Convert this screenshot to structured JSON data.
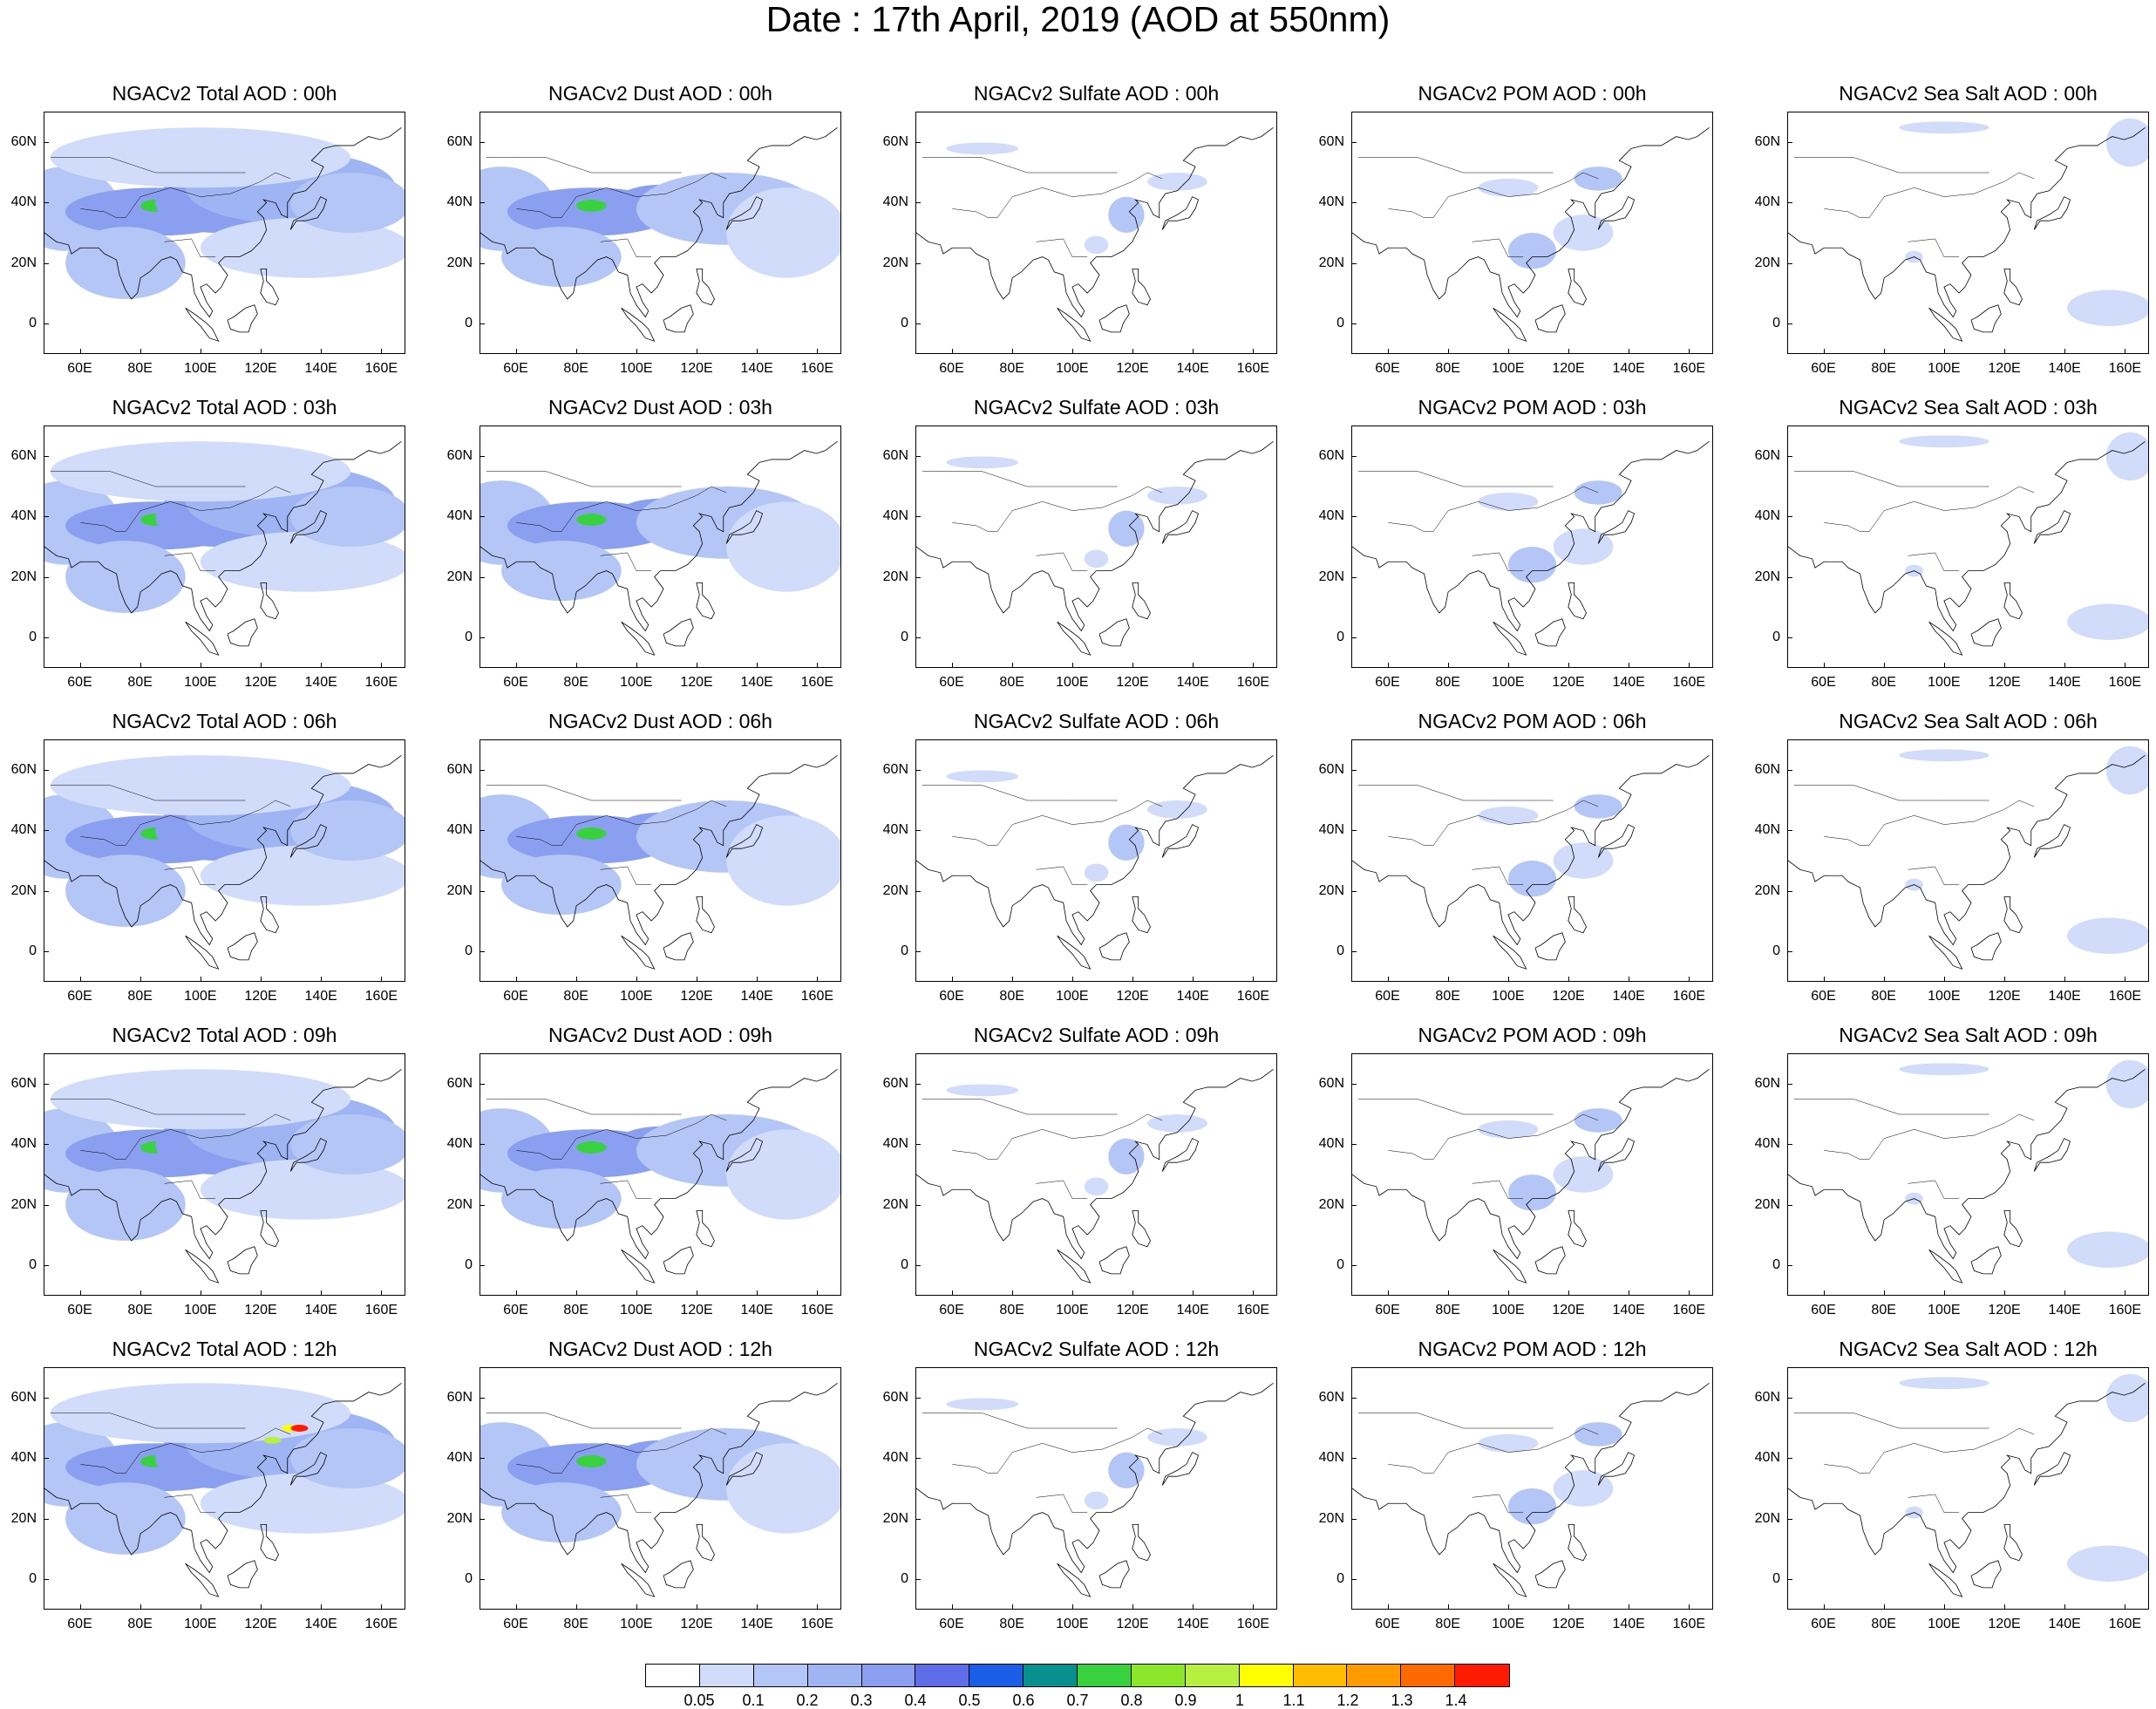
{
  "title": "Date : 17th April, 2019 (AOD at 550nm)",
  "species": [
    {
      "id": "total",
      "titles": [
        "NGACv2 Total AOD : 00h",
        "NGACv2 Total AOD : 03h",
        "NGACv2 Total AOD : 06h",
        "NGACv2 Total AOD : 09h",
        "NGACv2 Total AOD  : 12h"
      ]
    },
    {
      "id": "dust",
      "titles": [
        "NGACv2 Dust AOD : 00h",
        "NGACv2 Dust AOD : 03h",
        "NGACv2 Dust AOD : 06h",
        "NGACv2 Dust AOD : 09h",
        "NGACv2 Dust AOD : 12h"
      ]
    },
    {
      "id": "sulfate",
      "titles": [
        "NGACv2 Sulfate AOD : 00h",
        "NGACv2 Sulfate AOD : 03h",
        "NGACv2 Sulfate AOD : 06h",
        "NGACv2 Sulfate AOD : 09h",
        "NGACv2 Sulfate AOD : 12h"
      ]
    },
    {
      "id": "pom",
      "titles": [
        "NGACv2 POM AOD : 00h",
        "NGACv2 POM AOD : 03h",
        "NGACv2 POM AOD : 06h",
        "NGACv2 POM AOD : 09h",
        "NGACv2 POM  AOD : 12h"
      ]
    },
    {
      "id": "seasalt",
      "titles": [
        "NGACv2 Sea Salt AOD : 00h",
        "NGACv2 Sea Salt AOD : 03h",
        "NGACv2 Sea Salt AOD : 06h",
        "NGACv2 Sea Salt  AOD : 09h",
        "NGACv2 Sea Salt  AOD : 12h"
      ]
    }
  ],
  "hours": [
    "00h",
    "03h",
    "06h",
    "09h",
    "12h"
  ],
  "axes": {
    "lon_ticks": [
      "60E",
      "80E",
      "100E",
      "120E",
      "140E",
      "160E"
    ],
    "lon_values": [
      60,
      80,
      100,
      120,
      140,
      160
    ],
    "lat_ticks": [
      "60N",
      "40N",
      "20N",
      "0"
    ],
    "lat_values": [
      60,
      40,
      20,
      0
    ],
    "lon_range": [
      48,
      168
    ],
    "lat_range": [
      -10,
      70
    ]
  },
  "colorbar": {
    "colors": [
      "#ffffff",
      "#d0dcfa",
      "#b4c6f6",
      "#9fb4f2",
      "#8a9ff0",
      "#5f6ee8",
      "#1a5ee8",
      "#07908e",
      "#38d23e",
      "#8ce62a",
      "#b8f040",
      "#ffff00",
      "#ffbc00",
      "#ff9a00",
      "#ff6a00",
      "#ff1a00"
    ],
    "labels": [
      "0.05",
      "0.1",
      "0.2",
      "0.3",
      "0.4",
      "0.5",
      "0.6",
      "0.7",
      "0.8",
      "0.9",
      "1",
      "1.1",
      "1.2",
      "1.3",
      "1.4"
    ]
  },
  "chart_data": {
    "type": "heatmap",
    "title": "Date : 17th April, 2019 (AOD at 550nm)",
    "variable": "AOD at 550nm",
    "xrange": [
      48,
      168
    ],
    "yrange": [
      -10,
      70
    ],
    "features": {
      "total": [
        {
          "lon": 55,
          "lat": 38,
          "rx": 18,
          "ry": 14,
          "level": 2
        },
        {
          "lon": 85,
          "lat": 37,
          "rx": 30,
          "ry": 8,
          "level": 4
        },
        {
          "lon": 85,
          "lat": 39,
          "rx": 5,
          "ry": 2,
          "level": 8
        },
        {
          "lon": 105,
          "lat": 40,
          "rx": 20,
          "ry": 10,
          "level": 4
        },
        {
          "lon": 130,
          "lat": 45,
          "rx": 35,
          "ry": 12,
          "level": 3
        },
        {
          "lon": 75,
          "lat": 20,
          "rx": 20,
          "ry": 12,
          "level": 2
        },
        {
          "lon": 135,
          "lat": 25,
          "rx": 35,
          "ry": 10,
          "level": 1
        },
        {
          "lon": 100,
          "lat": 55,
          "rx": 50,
          "ry": 10,
          "level": 1
        },
        {
          "lon": 150,
          "lat": 40,
          "rx": 20,
          "ry": 10,
          "level": 2
        }
      ],
      "dust": [
        {
          "lon": 55,
          "lat": 38,
          "rx": 18,
          "ry": 14,
          "level": 2
        },
        {
          "lon": 85,
          "lat": 37,
          "rx": 28,
          "ry": 8,
          "level": 4
        },
        {
          "lon": 85,
          "lat": 39,
          "rx": 5,
          "ry": 2,
          "level": 8
        },
        {
          "lon": 108,
          "lat": 40,
          "rx": 15,
          "ry": 6,
          "level": 4
        },
        {
          "lon": 130,
          "lat": 38,
          "rx": 30,
          "ry": 12,
          "level": 2
        },
        {
          "lon": 75,
          "lat": 22,
          "rx": 20,
          "ry": 10,
          "level": 2
        },
        {
          "lon": 150,
          "lat": 30,
          "rx": 20,
          "ry": 15,
          "level": 1
        }
      ],
      "sulfate": [
        {
          "lon": 70,
          "lat": 58,
          "rx": 12,
          "ry": 2,
          "level": 1
        },
        {
          "lon": 118,
          "lat": 36,
          "rx": 6,
          "ry": 6,
          "level": 2
        },
        {
          "lon": 135,
          "lat": 47,
          "rx": 10,
          "ry": 3,
          "level": 1
        },
        {
          "lon": 108,
          "lat": 26,
          "rx": 4,
          "ry": 3,
          "level": 1
        }
      ],
      "pom": [
        {
          "lon": 108,
          "lat": 24,
          "rx": 8,
          "ry": 6,
          "level": 2
        },
        {
          "lon": 130,
          "lat": 48,
          "rx": 8,
          "ry": 4,
          "level": 2
        },
        {
          "lon": 125,
          "lat": 30,
          "rx": 10,
          "ry": 6,
          "level": 1
        },
        {
          "lon": 100,
          "lat": 45,
          "rx": 10,
          "ry": 3,
          "level": 1
        }
      ],
      "seasalt": [
        {
          "lon": 162,
          "lat": 60,
          "rx": 8,
          "ry": 8,
          "level": 1
        },
        {
          "lon": 155,
          "lat": 5,
          "rx": 14,
          "ry": 6,
          "level": 1
        },
        {
          "lon": 100,
          "lat": 65,
          "rx": 15,
          "ry": 2,
          "level": 1
        },
        {
          "lon": 90,
          "lat": 22,
          "rx": 3,
          "ry": 2,
          "level": 1
        }
      ]
    }
  }
}
